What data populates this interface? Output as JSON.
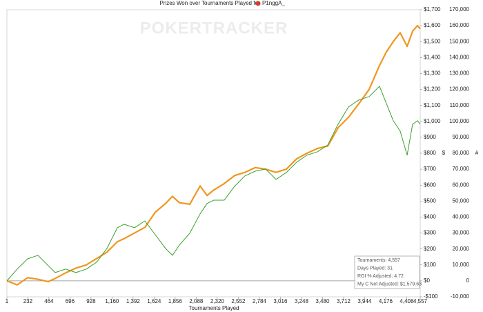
{
  "chart_data": {
    "type": "line",
    "title": "Prizes Won over Tournaments Played for",
    "player": "P1nggA_",
    "watermark": "POKERTRACKER",
    "xlabel": "Tournaments Played",
    "ylabel": "$",
    "y2label": "#",
    "x": [
      1,
      115,
      229,
      343,
      457,
      533,
      648,
      762,
      876,
      990,
      1104,
      1218,
      1294,
      1408,
      1522,
      1636,
      1750,
      1826,
      1903,
      2017,
      2131,
      2207,
      2283,
      2397,
      2511,
      2625,
      2739,
      2853,
      2967,
      3081,
      3195,
      3309,
      3424,
      3538,
      3652,
      3766,
      3880,
      3994,
      4108,
      4184,
      4260,
      4336,
      4413,
      4473,
      4527,
      4557
    ],
    "series": [
      {
        "color": "#f0961e",
        "axis": "y",
        "width": 2.2,
        "values": [
          0,
          -25,
          20,
          10,
          -5,
          15,
          50,
          80,
          100,
          140,
          180,
          245,
          265,
          300,
          335,
          430,
          485,
          530,
          490,
          480,
          595,
          535,
          570,
          610,
          660,
          680,
          710,
          700,
          680,
          700,
          765,
          800,
          830,
          845,
          960,
          1025,
          1110,
          1200,
          1350,
          1435,
          1500,
          1555,
          1470,
          1565,
          1600,
          1580
        ]
      },
      {
        "color": "#3aa02a",
        "axis": "y2",
        "width": 1,
        "values": [
          0,
          7400,
          13800,
          16000,
          9500,
          5200,
          7400,
          5200,
          7400,
          11700,
          20300,
          33300,
          35500,
          33300,
          37600,
          29000,
          20300,
          16000,
          22500,
          29900,
          42000,
          48500,
          50600,
          50600,
          59300,
          65800,
          68800,
          70100,
          63600,
          67900,
          74400,
          78800,
          80900,
          85200,
          98200,
          109000,
          113400,
          115500,
          122000,
          111200,
          100400,
          93900,
          78800,
          98200,
          100400,
          98200
        ]
      }
    ],
    "xlim": [
      1,
      4557
    ],
    "xticks": [
      1,
      232,
      464,
      696,
      928,
      {
        "value": 1160,
        "label": "1,160"
      },
      {
        "value": 1392,
        "label": "1,392"
      },
      {
        "value": 1624,
        "label": "1,624"
      },
      {
        "value": 1856,
        "label": "1,856"
      },
      {
        "value": 2088,
        "label": "2,088"
      },
      {
        "value": 2320,
        "label": "2,320"
      },
      {
        "value": 2552,
        "label": "2,552"
      },
      {
        "value": 2784,
        "label": "2,784"
      },
      {
        "value": 3016,
        "label": "3,016"
      },
      {
        "value": 3248,
        "label": "3,248"
      },
      {
        "value": 3480,
        "label": "3,480"
      },
      {
        "value": 3712,
        "label": "3,712"
      },
      {
        "value": 3944,
        "label": "3,944"
      },
      {
        "value": 4176,
        "label": "4,176"
      },
      {
        "value": 4408,
        "label": "4,408"
      },
      {
        "value": 4557,
        "label": "4,557"
      }
    ],
    "ylim": [
      -100,
      1700
    ],
    "yticks": [
      {
        "value": -100,
        "label": "-$100"
      },
      {
        "value": 0,
        "label": "$0"
      },
      {
        "value": 100,
        "label": "$100"
      },
      {
        "value": 200,
        "label": "$200"
      },
      {
        "value": 300,
        "label": "$300"
      },
      {
        "value": 400,
        "label": "$400"
      },
      {
        "value": 500,
        "label": "$500"
      },
      {
        "value": 600,
        "label": "$600"
      },
      {
        "value": 700,
        "label": "$700"
      },
      {
        "value": 800,
        "label": "$800"
      },
      {
        "value": 900,
        "label": "$900"
      },
      {
        "value": 1000,
        "label": "$1,000"
      },
      {
        "value": 1100,
        "label": "$1,100"
      },
      {
        "value": 1200,
        "label": "$1,200"
      },
      {
        "value": 1300,
        "label": "$1,300"
      },
      {
        "value": 1400,
        "label": "$1,400"
      },
      {
        "value": 1500,
        "label": "$1,500"
      },
      {
        "value": 1600,
        "label": "$1,600"
      },
      {
        "value": 1700,
        "label": "$1,700"
      }
    ],
    "y2lim": [
      -10000,
      170000
    ],
    "y2ticks": [
      {
        "value": -10000,
        "label": "-10,000"
      },
      0,
      {
        "value": 10000,
        "label": "10,000"
      },
      {
        "value": 20000,
        "label": "20,000"
      },
      {
        "value": 30000,
        "label": "30,000"
      },
      {
        "value": 40000,
        "label": "40,000"
      },
      {
        "value": 50000,
        "label": "50,000"
      },
      {
        "value": 60000,
        "label": "60,000"
      },
      {
        "value": 70000,
        "label": "70,000"
      },
      {
        "value": 80000,
        "label": "80,000"
      },
      {
        "value": 90000,
        "label": "90,000"
      },
      {
        "value": 100000,
        "label": "100,000"
      },
      {
        "value": 110000,
        "label": "110,000"
      },
      {
        "value": 120000,
        "label": "120,000"
      },
      {
        "value": 130000,
        "label": "130,000"
      },
      {
        "value": 140000,
        "label": "140,000"
      },
      {
        "value": 150000,
        "label": "150,000"
      },
      {
        "value": 160000,
        "label": "160,000"
      },
      {
        "value": 170000,
        "label": "170,000"
      }
    ],
    "info": [
      "Tournaments: 4,557",
      "Days Played: 31",
      "ROI % Adjusted: 4.72",
      "My C Net Adjusted: $1,579.63"
    ]
  }
}
